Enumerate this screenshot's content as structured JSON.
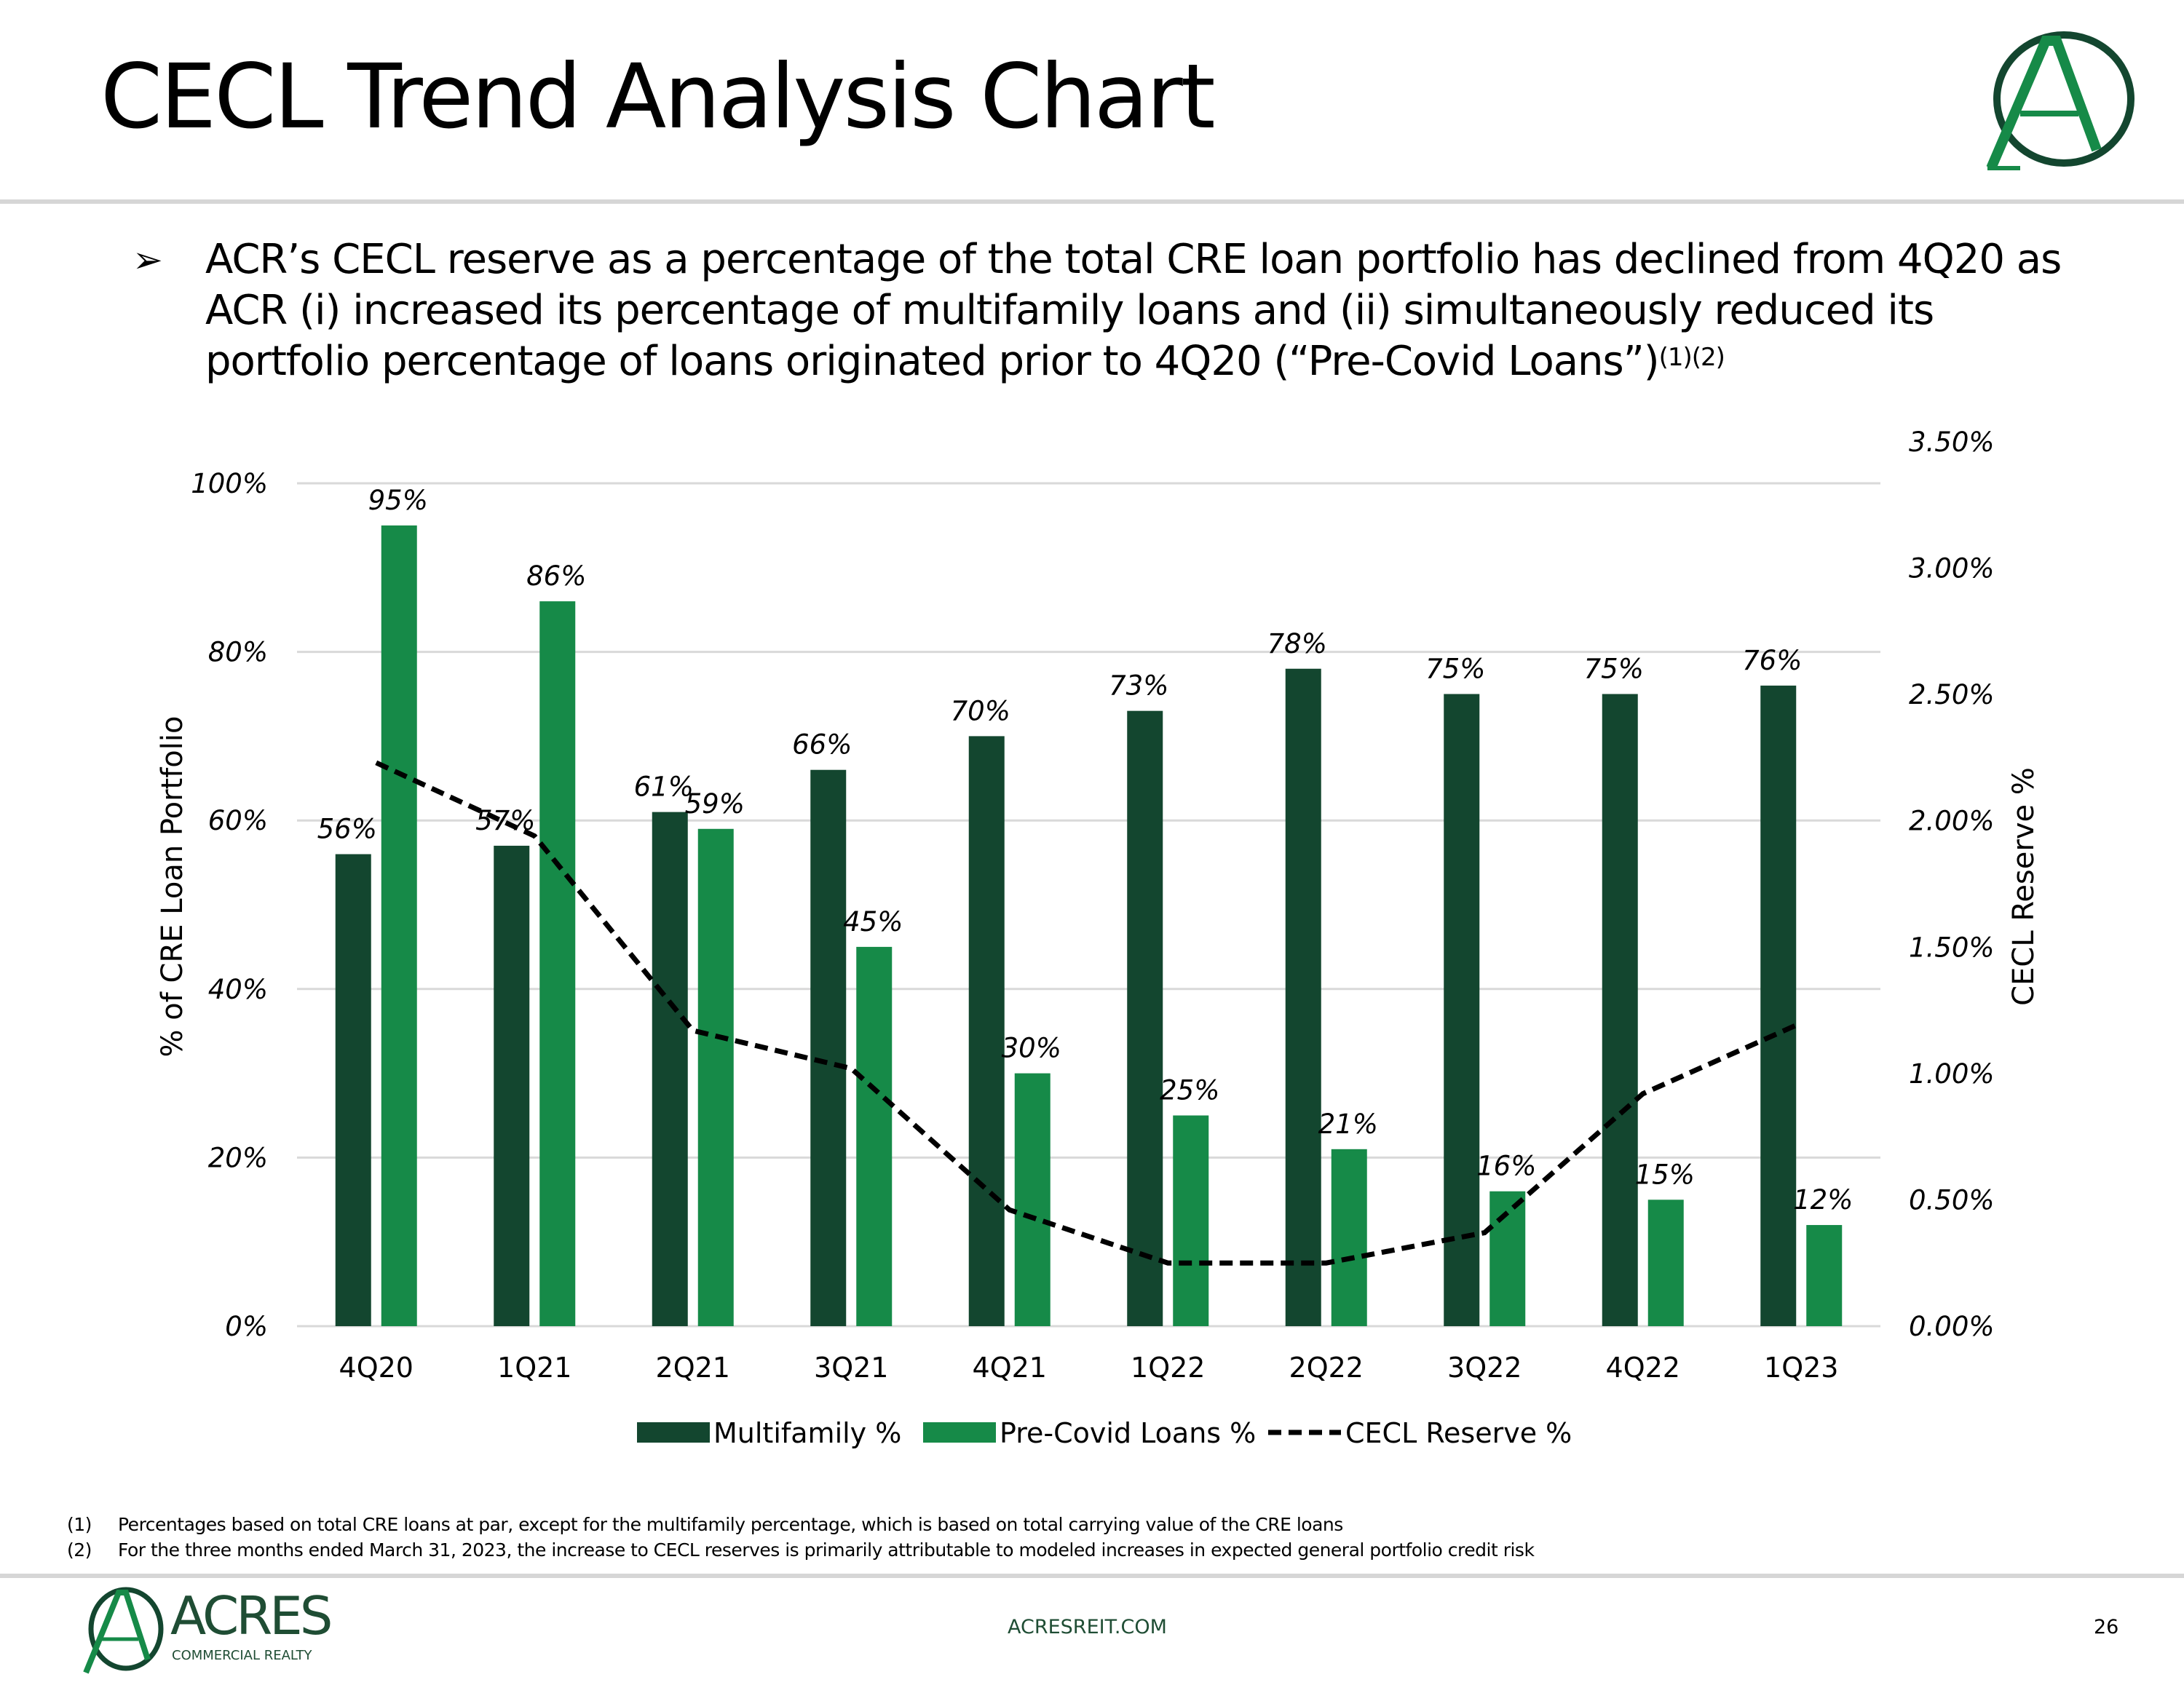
{
  "header": {
    "title": "CECL Trend Analysis Chart",
    "logo_letter": "A"
  },
  "bullet": {
    "icon": "arrow-bullet-icon",
    "text": "ACR’s CECL reserve as a percentage of the total CRE loan portfolio has declined from 4Q20 as ACR (i) increased its percentage of multifamily loans and (ii) simultaneously reduced its portfolio percentage of loans originated prior to 4Q20 (“Pre-Covid Loans”)",
    "superscript": "(1)(2)"
  },
  "colors": {
    "multifamily": "#13462f",
    "precovid": "#168a48",
    "cecl": "#000000",
    "grid": "#d9d9d9",
    "brand": "#1f4d34"
  },
  "chart_data": {
    "type": "bar",
    "categories": [
      "4Q20",
      "1Q21",
      "2Q21",
      "3Q21",
      "4Q21",
      "1Q22",
      "2Q22",
      "3Q22",
      "4Q22",
      "1Q23"
    ],
    "series": [
      {
        "name": "Multifamily %",
        "axis": "left",
        "type": "bar",
        "values": [
          56,
          57,
          61,
          66,
          70,
          73,
          78,
          75,
          75,
          76
        ]
      },
      {
        "name": "Pre-Covid Loans %",
        "axis": "left",
        "type": "bar",
        "values": [
          95,
          86,
          59,
          45,
          30,
          25,
          21,
          16,
          15,
          12
        ]
      },
      {
        "name": "CECL Reserve %",
        "axis": "right",
        "type": "line",
        "style": "dashed",
        "values": [
          2.23,
          1.94,
          1.17,
          1.02,
          0.46,
          0.25,
          0.25,
          0.37,
          0.92,
          1.2
        ]
      }
    ],
    "ylabel": "% of CRE Loan Portfolio",
    "ylabel_right": "CECL Reserve %",
    "ylim": [
      0,
      100
    ],
    "ylim_right": [
      0,
      3.5
    ],
    "yticks": [
      "0%",
      "20%",
      "40%",
      "60%",
      "80%",
      "100%"
    ],
    "yticks_values": [
      0,
      20,
      40,
      60,
      80,
      100
    ],
    "yticks_right": [
      "0.00%",
      "0.50%",
      "1.00%",
      "1.50%",
      "2.00%",
      "2.50%",
      "3.00%",
      "3.50%"
    ],
    "yticks_right_values": [
      0,
      0.5,
      1,
      1.5,
      2,
      2.5,
      3,
      3.5
    ],
    "data_labels": {
      "multifamily": [
        "56%",
        "57%",
        "61%",
        "66%",
        "70%",
        "73%",
        "78%",
        "75%",
        "75%",
        "76%"
      ],
      "precovid": [
        "95%",
        "86%",
        "59%",
        "45%",
        "30%",
        "25%",
        "21%",
        "16%",
        "15%",
        "12%"
      ]
    },
    "grid": true,
    "legend_position": "bottom"
  },
  "footnotes": [
    {
      "num": "(1)",
      "text": "Percentages based on total CRE loans at par, except for the multifamily percentage, which is based on total carrying value of the CRE loans"
    },
    {
      "num": "(2)",
      "text": "For the three months ended March 31, 2023, the increase to CECL reserves is primarily attributable to modeled increases in expected general portfolio credit risk"
    }
  ],
  "footer": {
    "brand": "ACRES",
    "brand_sub": "COMMERCIAL REALTY",
    "url": "ACRESREIT.COM",
    "page": "26"
  }
}
